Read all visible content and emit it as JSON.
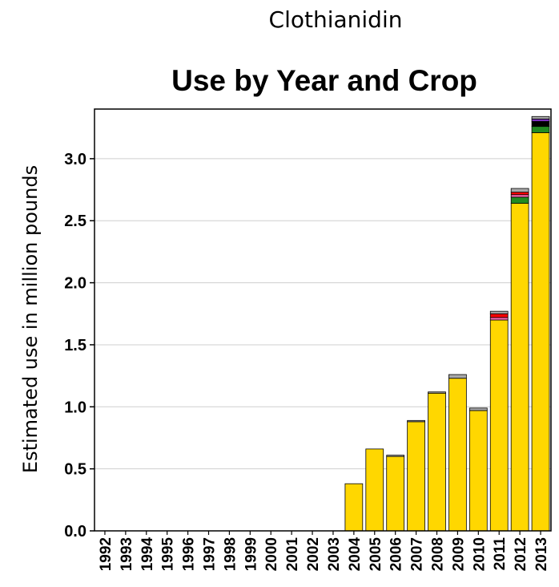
{
  "header": {
    "compound": "Clothianidin"
  },
  "chart_data": {
    "type": "bar",
    "stacked": true,
    "title": "Use by Year and Crop",
    "ylabel": "Estimated use in million pounds",
    "xlabel": "",
    "ylim": [
      0,
      3.4
    ],
    "yticks": [
      "0.0",
      "0.5",
      "1.0",
      "1.5",
      "2.0",
      "2.5",
      "3.0"
    ],
    "grid": true,
    "categories": [
      "1992",
      "1993",
      "1994",
      "1995",
      "1996",
      "1997",
      "1998",
      "1999",
      "2000",
      "2001",
      "2002",
      "2003",
      "2004",
      "2005",
      "2006",
      "2007",
      "2008",
      "2009",
      "2010",
      "2011",
      "2012",
      "2013"
    ],
    "series": [
      {
        "color": "#FFD700",
        "values": [
          0,
          0,
          0,
          0,
          0,
          0,
          0,
          0,
          0,
          0,
          0,
          0,
          0.38,
          0.66,
          0.6,
          0.88,
          1.11,
          1.23,
          0.97,
          1.7,
          2.64,
          3.21
        ]
      },
      {
        "color": "#228B22",
        "values": [
          0,
          0,
          0,
          0,
          0,
          0,
          0,
          0,
          0,
          0,
          0,
          0,
          0,
          0,
          0,
          0,
          0,
          0,
          0,
          0,
          0.05,
          0.05
        ]
      },
      {
        "color": "#FF69B4",
        "values": [
          0,
          0,
          0,
          0,
          0,
          0,
          0,
          0,
          0,
          0,
          0,
          0,
          0,
          0,
          0,
          0,
          0,
          0,
          0,
          0.02,
          0.02,
          0
        ]
      },
      {
        "color": "#FF0000",
        "values": [
          0,
          0,
          0,
          0,
          0,
          0,
          0,
          0,
          0,
          0,
          0,
          0,
          0,
          0,
          0,
          0,
          0,
          0,
          0,
          0.03,
          0.02,
          0
        ]
      },
      {
        "color": "#000000",
        "values": [
          0,
          0,
          0,
          0,
          0,
          0,
          0,
          0,
          0,
          0,
          0,
          0,
          0,
          0,
          0,
          0,
          0,
          0,
          0,
          0,
          0,
          0.04
        ]
      },
      {
        "color": "#7B2FBE",
        "values": [
          0,
          0,
          0,
          0,
          0,
          0,
          0,
          0,
          0,
          0,
          0,
          0,
          0,
          0,
          0,
          0,
          0,
          0,
          0,
          0,
          0,
          0.02
        ]
      },
      {
        "color": "#A9A9A9",
        "values": [
          0,
          0,
          0,
          0,
          0,
          0,
          0,
          0,
          0,
          0,
          0,
          0,
          0,
          0,
          0.01,
          0.01,
          0.01,
          0.03,
          0.02,
          0.02,
          0.03,
          0.02
        ]
      }
    ]
  }
}
